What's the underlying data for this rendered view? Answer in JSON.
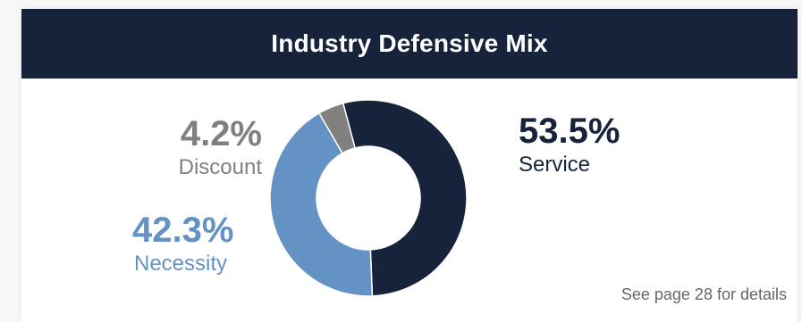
{
  "header": {
    "title": "Industry Defensive Mix"
  },
  "chart_data": {
    "type": "pie",
    "categories": [
      "Service",
      "Necessity",
      "Discount"
    ],
    "values": [
      53.5,
      42.3,
      4.2
    ],
    "value_labels": [
      "53.5%",
      "42.3%",
      "4.2%"
    ],
    "colors": [
      "#17233b",
      "#6592c4",
      "#808080"
    ],
    "donut": true,
    "title": "Industry Defensive Mix"
  },
  "footer": {
    "note": "See page 28 for details"
  }
}
